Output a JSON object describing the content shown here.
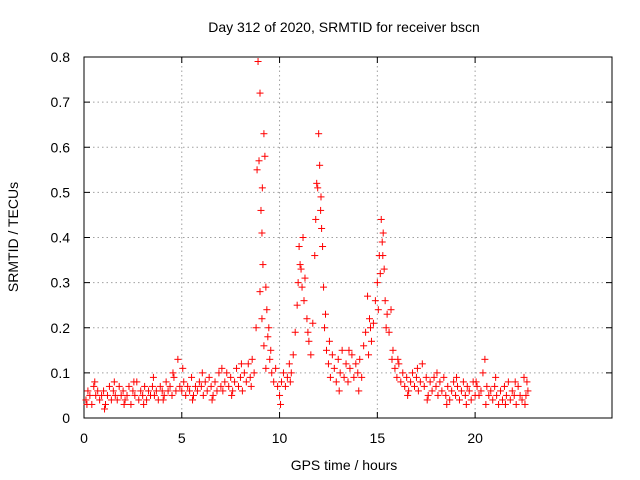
{
  "chart_data": {
    "type": "scatter",
    "title": "Day 312 of 2020, SRMTID for receiver bscn",
    "xlabel": "GPS time / hours",
    "ylabel": "SRMTID / TECUs",
    "xlim": [
      0,
      27
    ],
    "ylim": [
      0,
      0.8
    ],
    "xticks": [
      0,
      5,
      10,
      15,
      20
    ],
    "yticks": [
      0,
      0.1,
      0.2,
      0.3,
      0.4,
      0.5,
      0.6,
      0.7,
      0.8
    ],
    "grid": true,
    "marker": "plus",
    "series": [
      {
        "name": "SRMTID",
        "color": "#ff0000",
        "points": [
          [
            0.1,
            0.04
          ],
          [
            0.2,
            0.06
          ],
          [
            0.3,
            0.05
          ],
          [
            0.4,
            0.03
          ],
          [
            0.5,
            0.07
          ],
          [
            0.6,
            0.05
          ],
          [
            0.7,
            0.06
          ],
          [
            0.8,
            0.04
          ],
          [
            0.9,
            0.05
          ],
          [
            1.0,
            0.06
          ],
          [
            1.1,
            0.03
          ],
          [
            1.2,
            0.05
          ],
          [
            1.3,
            0.07
          ],
          [
            1.4,
            0.04
          ],
          [
            1.5,
            0.06
          ],
          [
            1.6,
            0.05
          ],
          [
            1.7,
            0.04
          ],
          [
            1.8,
            0.07
          ],
          [
            1.9,
            0.05
          ],
          [
            2.0,
            0.06
          ],
          [
            2.1,
            0.04
          ],
          [
            2.2,
            0.05
          ],
          [
            2.3,
            0.07
          ],
          [
            2.4,
            0.03
          ],
          [
            2.5,
            0.06
          ],
          [
            2.6,
            0.05
          ],
          [
            2.7,
            0.08
          ],
          [
            2.8,
            0.04
          ],
          [
            2.9,
            0.06
          ],
          [
            3.0,
            0.05
          ],
          [
            3.1,
            0.07
          ],
          [
            3.2,
            0.04
          ],
          [
            3.3,
            0.06
          ],
          [
            3.4,
            0.05
          ],
          [
            3.5,
            0.07
          ],
          [
            3.6,
            0.05
          ],
          [
            3.7,
            0.06
          ],
          [
            3.8,
            0.04
          ],
          [
            3.9,
            0.07
          ],
          [
            4.0,
            0.06
          ],
          [
            4.1,
            0.05
          ],
          [
            4.2,
            0.08
          ],
          [
            4.3,
            0.06
          ],
          [
            4.4,
            0.07
          ],
          [
            4.5,
            0.05
          ],
          [
            4.6,
            0.09
          ],
          [
            4.7,
            0.06
          ],
          [
            4.8,
            0.13
          ],
          [
            4.9,
            0.07
          ],
          [
            5.0,
            0.06
          ],
          [
            5.1,
            0.08
          ],
          [
            5.2,
            0.05
          ],
          [
            5.3,
            0.07
          ],
          [
            5.4,
            0.06
          ],
          [
            5.5,
            0.09
          ],
          [
            5.6,
            0.05
          ],
          [
            5.7,
            0.07
          ],
          [
            5.8,
            0.06
          ],
          [
            5.9,
            0.08
          ],
          [
            6.0,
            0.07
          ],
          [
            6.1,
            0.05
          ],
          [
            6.2,
            0.08
          ],
          [
            6.3,
            0.06
          ],
          [
            6.4,
            0.09
          ],
          [
            6.5,
            0.07
          ],
          [
            6.6,
            0.05
          ],
          [
            6.7,
            0.08
          ],
          [
            6.8,
            0.06
          ],
          [
            6.9,
            0.1
          ],
          [
            7.0,
            0.07
          ],
          [
            7.1,
            0.06
          ],
          [
            7.2,
            0.08
          ],
          [
            7.3,
            0.1
          ],
          [
            7.4,
            0.07
          ],
          [
            7.5,
            0.09
          ],
          [
            7.6,
            0.06
          ],
          [
            7.7,
            0.08
          ],
          [
            7.8,
            0.11
          ],
          [
            7.9,
            0.07
          ],
          [
            8.0,
            0.09
          ],
          [
            8.1,
            0.06
          ],
          [
            8.2,
            0.1
          ],
          [
            8.3,
            0.08
          ],
          [
            8.4,
            0.12
          ],
          [
            8.5,
            0.09
          ],
          [
            8.6,
            0.13
          ],
          [
            8.7,
            0.1
          ],
          [
            8.8,
            0.2
          ],
          [
            8.9,
            0.79
          ],
          [
            9.0,
            0.72
          ],
          [
            8.95,
            0.57
          ],
          [
            9.05,
            0.46
          ],
          [
            9.1,
            0.41
          ],
          [
            9.15,
            0.34
          ],
          [
            9.2,
            0.63
          ],
          [
            9.25,
            0.58
          ],
          [
            9.3,
            0.29
          ],
          [
            9.35,
            0.24
          ],
          [
            9.4,
            0.18
          ],
          [
            9.5,
            0.13
          ],
          [
            9.0,
            0.28
          ],
          [
            9.1,
            0.22
          ],
          [
            9.2,
            0.16
          ],
          [
            9.3,
            0.11
          ],
          [
            9.6,
            0.1
          ],
          [
            9.7,
            0.08
          ],
          [
            9.8,
            0.11
          ],
          [
            9.9,
            0.07
          ],
          [
            10.0,
            0.05
          ],
          [
            10.1,
            0.08
          ],
          [
            10.2,
            0.1
          ],
          [
            10.3,
            0.07
          ],
          [
            10.4,
            0.09
          ],
          [
            10.5,
            0.12
          ],
          [
            10.6,
            0.1
          ],
          [
            10.7,
            0.14
          ],
          [
            10.8,
            0.19
          ],
          [
            10.9,
            0.25
          ],
          [
            11.0,
            0.38
          ],
          [
            11.1,
            0.33
          ],
          [
            11.2,
            0.4
          ],
          [
            11.3,
            0.31
          ],
          [
            11.4,
            0.22
          ],
          [
            11.5,
            0.17
          ],
          [
            11.6,
            0.14
          ],
          [
            11.7,
            0.21
          ],
          [
            11.8,
            0.36
          ],
          [
            11.9,
            0.52
          ],
          [
            12.0,
            0.63
          ],
          [
            12.05,
            0.56
          ],
          [
            12.1,
            0.46
          ],
          [
            12.15,
            0.42
          ],
          [
            12.2,
            0.38
          ],
          [
            12.25,
            0.29
          ],
          [
            12.3,
            0.2
          ],
          [
            12.4,
            0.15
          ],
          [
            12.5,
            0.12
          ],
          [
            12.6,
            0.09
          ],
          [
            12.7,
            0.14
          ],
          [
            12.8,
            0.11
          ],
          [
            12.9,
            0.08
          ],
          [
            13.0,
            0.13
          ],
          [
            13.1,
            0.1
          ],
          [
            13.2,
            0.15
          ],
          [
            13.3,
            0.09
          ],
          [
            13.4,
            0.12
          ],
          [
            13.5,
            0.08
          ],
          [
            13.6,
            0.11
          ],
          [
            13.7,
            0.14
          ],
          [
            13.8,
            0.09
          ],
          [
            13.9,
            0.12
          ],
          [
            14.0,
            0.1
          ],
          [
            14.1,
            0.13
          ],
          [
            14.2,
            0.09
          ],
          [
            14.3,
            0.16
          ],
          [
            14.4,
            0.19
          ],
          [
            14.5,
            0.27
          ],
          [
            14.6,
            0.22
          ],
          [
            14.7,
            0.17
          ],
          [
            14.8,
            0.21
          ],
          [
            14.9,
            0.26
          ],
          [
            15.0,
            0.3
          ],
          [
            15.1,
            0.36
          ],
          [
            15.2,
            0.44
          ],
          [
            15.3,
            0.41
          ],
          [
            15.35,
            0.33
          ],
          [
            15.4,
            0.26
          ],
          [
            15.5,
            0.23
          ],
          [
            15.6,
            0.19
          ],
          [
            15.7,
            0.24
          ],
          [
            15.8,
            0.15
          ],
          [
            15.9,
            0.11
          ],
          [
            16.0,
            0.09
          ],
          [
            16.1,
            0.12
          ],
          [
            16.2,
            0.08
          ],
          [
            16.3,
            0.1
          ],
          [
            16.4,
            0.07
          ],
          [
            16.5,
            0.09
          ],
          [
            16.6,
            0.06
          ],
          [
            16.7,
            0.08
          ],
          [
            16.8,
            0.1
          ],
          [
            16.9,
            0.07
          ],
          [
            17.0,
            0.09
          ],
          [
            17.1,
            0.06
          ],
          [
            17.2,
            0.08
          ],
          [
            17.3,
            0.12
          ],
          [
            17.4,
            0.07
          ],
          [
            17.5,
            0.09
          ],
          [
            17.6,
            0.05
          ],
          [
            17.7,
            0.08
          ],
          [
            17.8,
            0.06
          ],
          [
            17.9,
            0.09
          ],
          [
            18.0,
            0.07
          ],
          [
            18.1,
            0.05
          ],
          [
            18.2,
            0.08
          ],
          [
            18.3,
            0.06
          ],
          [
            18.4,
            0.09
          ],
          [
            18.5,
            0.05
          ],
          [
            18.6,
            0.07
          ],
          [
            18.7,
            0.04
          ],
          [
            18.8,
            0.06
          ],
          [
            18.9,
            0.08
          ],
          [
            19.0,
            0.05
          ],
          [
            19.1,
            0.07
          ],
          [
            19.2,
            0.04
          ],
          [
            19.3,
            0.06
          ],
          [
            19.4,
            0.08
          ],
          [
            19.5,
            0.05
          ],
          [
            19.6,
            0.07
          ],
          [
            19.7,
            0.06
          ],
          [
            19.8,
            0.04
          ],
          [
            19.9,
            0.08
          ],
          [
            20.0,
            0.05
          ],
          [
            20.1,
            0.07
          ],
          [
            20.2,
            0.05
          ],
          [
            20.3,
            0.06
          ],
          [
            20.4,
            0.1
          ],
          [
            20.5,
            0.13
          ],
          [
            20.6,
            0.07
          ],
          [
            20.7,
            0.05
          ],
          [
            20.8,
            0.06
          ],
          [
            20.9,
            0.04
          ],
          [
            21.0,
            0.07
          ],
          [
            21.1,
            0.05
          ],
          [
            21.2,
            0.03
          ],
          [
            21.3,
            0.06
          ],
          [
            21.4,
            0.04
          ],
          [
            21.5,
            0.07
          ],
          [
            21.6,
            0.05
          ],
          [
            21.7,
            0.08
          ],
          [
            21.8,
            0.04
          ],
          [
            21.9,
            0.06
          ],
          [
            22.0,
            0.05
          ],
          [
            22.1,
            0.03
          ],
          [
            22.2,
            0.07
          ],
          [
            22.3,
            0.05
          ],
          [
            22.4,
            0.04
          ],
          [
            22.5,
            0.09
          ],
          [
            22.6,
            0.05
          ],
          [
            22.7,
            0.06
          ],
          [
            0.15,
            0.03
          ],
          [
            0.55,
            0.08
          ],
          [
            1.05,
            0.02
          ],
          [
            1.55,
            0.08
          ],
          [
            2.05,
            0.03
          ],
          [
            2.55,
            0.08
          ],
          [
            3.05,
            0.03
          ],
          [
            3.55,
            0.09
          ],
          [
            4.05,
            0.04
          ],
          [
            4.55,
            0.1
          ],
          [
            5.05,
            0.11
          ],
          [
            5.55,
            0.04
          ],
          [
            6.05,
            0.1
          ],
          [
            6.55,
            0.04
          ],
          [
            7.05,
            0.11
          ],
          [
            7.55,
            0.05
          ],
          [
            8.05,
            0.12
          ],
          [
            8.55,
            0.07
          ],
          [
            9.45,
            0.2
          ],
          [
            9.55,
            0.15
          ],
          [
            10.05,
            0.03
          ],
          [
            10.55,
            0.08
          ],
          [
            10.95,
            0.3
          ],
          [
            11.05,
            0.34
          ],
          [
            11.25,
            0.26
          ],
          [
            11.45,
            0.19
          ],
          [
            11.85,
            0.44
          ],
          [
            11.95,
            0.51
          ],
          [
            12.35,
            0.23
          ],
          [
            12.55,
            0.17
          ],
          [
            13.05,
            0.06
          ],
          [
            13.55,
            0.15
          ],
          [
            14.05,
            0.06
          ],
          [
            14.55,
            0.14
          ],
          [
            15.05,
            0.24
          ],
          [
            15.15,
            0.32
          ],
          [
            15.25,
            0.39
          ],
          [
            15.45,
            0.2
          ],
          [
            15.75,
            0.13
          ],
          [
            16.05,
            0.13
          ],
          [
            16.55,
            0.05
          ],
          [
            17.05,
            0.11
          ],
          [
            17.55,
            0.04
          ],
          [
            18.05,
            0.1
          ],
          [
            18.55,
            0.03
          ],
          [
            19.05,
            0.09
          ],
          [
            19.55,
            0.03
          ],
          [
            20.05,
            0.08
          ],
          [
            20.55,
            0.03
          ],
          [
            21.05,
            0.09
          ],
          [
            21.55,
            0.03
          ],
          [
            22.05,
            0.08
          ],
          [
            22.55,
            0.03
          ],
          [
            22.65,
            0.08
          ],
          [
            8.85,
            0.55
          ],
          [
            9.12,
            0.51
          ],
          [
            11.15,
            0.29
          ],
          [
            12.12,
            0.49
          ],
          [
            15.28,
            0.36
          ],
          [
            14.65,
            0.2
          ]
        ]
      }
    ]
  }
}
